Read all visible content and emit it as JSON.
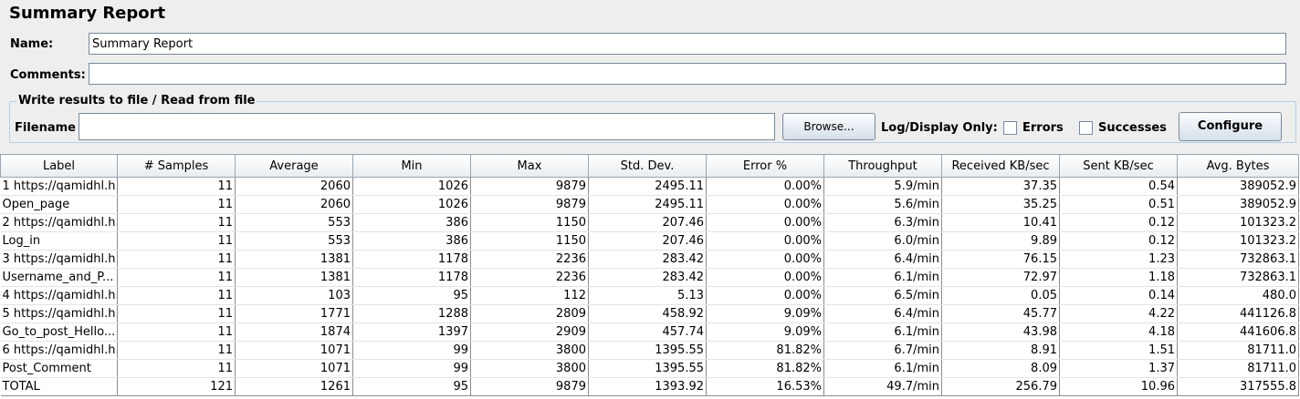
{
  "title": "Summary Report",
  "form": {
    "name_label": "Name:",
    "name_value": "Summary Report",
    "comments_label": "Comments:",
    "comments_value": ""
  },
  "file_group": {
    "title": "Write results to file / Read from file",
    "filename_label": "Filename",
    "filename_value": "",
    "browse_label": "Browse...",
    "log_display_label": "Log/Display Only:",
    "errors_label": "Errors",
    "errors_checked": false,
    "successes_label": "Successes",
    "successes_checked": false,
    "configure_label": "Configure"
  },
  "table": {
    "headers": [
      "Label",
      "# Samples",
      "Average",
      "Min",
      "Max",
      "Std. Dev.",
      "Error %",
      "Throughput",
      "Received KB/sec",
      "Sent KB/sec",
      "Avg. Bytes"
    ],
    "rows": [
      [
        "1 https://qamidhl.h...",
        "11",
        "2060",
        "1026",
        "9879",
        "2495.11",
        "0.00%",
        "5.9/min",
        "37.35",
        "0.54",
        "389052.9"
      ],
      [
        "Open_page",
        "11",
        "2060",
        "1026",
        "9879",
        "2495.11",
        "0.00%",
        "5.6/min",
        "35.25",
        "0.51",
        "389052.9"
      ],
      [
        "2 https://qamidhl.h...",
        "11",
        "553",
        "386",
        "1150",
        "207.46",
        "0.00%",
        "6.3/min",
        "10.41",
        "0.12",
        "101323.2"
      ],
      [
        "Log_in",
        "11",
        "553",
        "386",
        "1150",
        "207.46",
        "0.00%",
        "6.0/min",
        "9.89",
        "0.12",
        "101323.2"
      ],
      [
        "3 https://qamidhl.h...",
        "11",
        "1381",
        "1178",
        "2236",
        "283.42",
        "0.00%",
        "6.4/min",
        "76.15",
        "1.23",
        "732863.1"
      ],
      [
        "Username_and_P...",
        "11",
        "1381",
        "1178",
        "2236",
        "283.42",
        "0.00%",
        "6.1/min",
        "72.97",
        "1.18",
        "732863.1"
      ],
      [
        "4 https://qamidhl.h...",
        "11",
        "103",
        "95",
        "112",
        "5.13",
        "0.00%",
        "6.5/min",
        "0.05",
        "0.14",
        "480.0"
      ],
      [
        "5 https://qamidhl.h...",
        "11",
        "1771",
        "1288",
        "2809",
        "458.92",
        "9.09%",
        "6.4/min",
        "45.77",
        "4.22",
        "441126.8"
      ],
      [
        "Go_to_post_Hello...",
        "11",
        "1874",
        "1397",
        "2909",
        "457.74",
        "9.09%",
        "6.1/min",
        "43.98",
        "4.18",
        "441606.8"
      ],
      [
        "6 https://qamidhl.h...",
        "11",
        "1071",
        "99",
        "3800",
        "1395.55",
        "81.82%",
        "6.7/min",
        "8.91",
        "1.51",
        "81711.0"
      ],
      [
        "Post_Comment",
        "11",
        "1071",
        "99",
        "3800",
        "1395.55",
        "81.82%",
        "6.1/min",
        "8.09",
        "1.37",
        "81711.0"
      ],
      [
        "TOTAL",
        "121",
        "1261",
        "95",
        "9879",
        "1393.92",
        "16.53%",
        "49.7/min",
        "256.79",
        "10.96",
        "317555.8"
      ]
    ]
  }
}
